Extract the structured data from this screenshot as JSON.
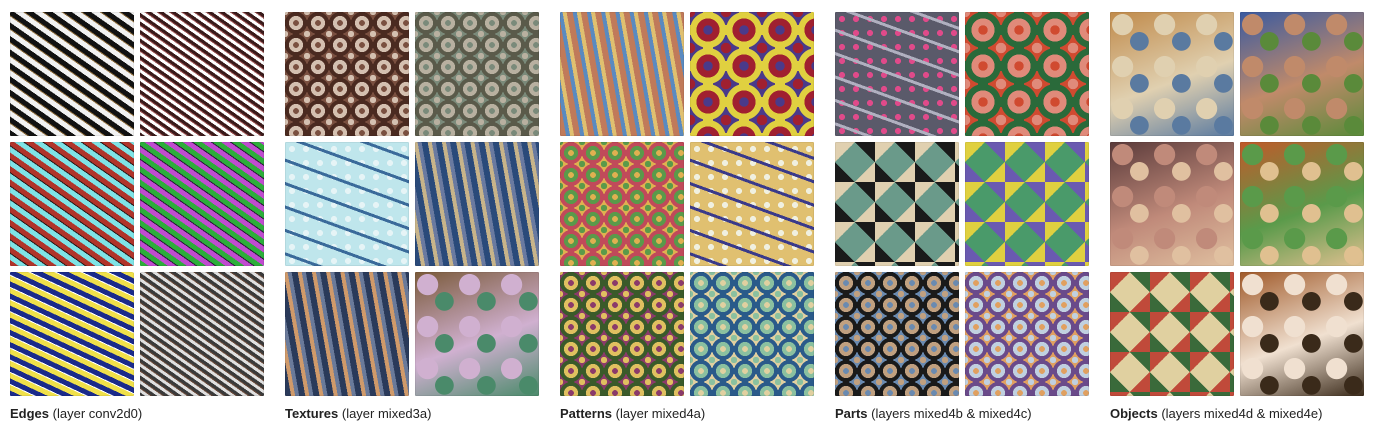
{
  "groups": [
    {
      "name": "Edges",
      "layer": "(layer conv2d0)",
      "tiles": [
        {
          "style": "edges-bw-diagonal",
          "colors": [
            "#111111",
            "#f2f2f2",
            "#8a6a3a"
          ]
        },
        {
          "style": "edges-bw-fine",
          "colors": [
            "#3a1a1a",
            "#ffffff",
            "#9a5050"
          ]
        },
        {
          "style": "edges-red-cyan",
          "colors": [
            "#b0342a",
            "#7fe3e6",
            "#2a1a1a"
          ]
        },
        {
          "style": "edges-green-magenta",
          "colors": [
            "#2cae3a",
            "#c04bd0",
            "#2a1a3a"
          ]
        },
        {
          "style": "edges-yellow-blue",
          "colors": [
            "#1a2a8a",
            "#f0e04a",
            "#ffffff"
          ]
        },
        {
          "style": "edges-grey-fine",
          "colors": [
            "#3a3a3a",
            "#e0e0e0",
            "#6a4a3a"
          ]
        }
      ]
    },
    {
      "name": "Textures",
      "layer": "(layer mixed3a)",
      "tiles": [
        {
          "style": "cells-brown",
          "colors": [
            "#4a2a20",
            "#d4c0b0",
            "#7a5040"
          ]
        },
        {
          "style": "scales-grey",
          "colors": [
            "#5a5a4a",
            "#b8b0a0",
            "#7a8a7a"
          ]
        },
        {
          "style": "dots-lightblue",
          "colors": [
            "#bfe6ec",
            "#3a6a9a",
            "#e6f4f6"
          ]
        },
        {
          "style": "waves-blue",
          "colors": [
            "#2a4a7a",
            "#c8b48a",
            "#6a7aa0"
          ]
        },
        {
          "style": "weave-tan",
          "colors": [
            "#2a3a5a",
            "#d09a6a",
            "#6a7a9a"
          ]
        },
        {
          "style": "blobs-pastel",
          "colors": [
            "#7a5a3a",
            "#d0b0d0",
            "#4a8a6a"
          ]
        }
      ]
    },
    {
      "name": "Patterns",
      "layer": "(layer mixed4a)",
      "tiles": [
        {
          "style": "interlace-rainbow",
          "colors": [
            "#c07a5a",
            "#5a8ac0",
            "#e0c070"
          ]
        },
        {
          "style": "fluff-flowers",
          "colors": [
            "#e0d040",
            "#a02030",
            "#4a3a8a"
          ]
        },
        {
          "style": "bubbles-multicolor",
          "colors": [
            "#c04a5a",
            "#5a9a4a",
            "#e0b050"
          ]
        },
        {
          "style": "text-noise",
          "colors": [
            "#e0c070",
            "#3a3a8a",
            "#f0f0e0"
          ]
        },
        {
          "style": "eyes-circles",
          "colors": [
            "#3a5a2a",
            "#e0c060",
            "#8a3a6a"
          ]
        },
        {
          "style": "hex-blue",
          "colors": [
            "#2a5a8a",
            "#8ac0a0",
            "#e0d0a0"
          ]
        }
      ]
    },
    {
      "name": "Parts",
      "layer": "(layers mixed4b & mixed4c)",
      "tiles": [
        {
          "style": "gadgets-grey",
          "colors": [
            "#5a5a6a",
            "#b0b0c0",
            "#e04a8a"
          ]
        },
        {
          "style": "flowers-pink",
          "colors": [
            "#2a6a3a",
            "#e08a7a",
            "#d04a30"
          ]
        },
        {
          "style": "chains-black",
          "colors": [
            "#1a1a1a",
            "#e0d0b0",
            "#6a9a8a"
          ]
        },
        {
          "style": "patchwork",
          "colors": [
            "#6a5ab0",
            "#e0d040",
            "#4a9a6a"
          ]
        },
        {
          "style": "dog-noses",
          "colors": [
            "#1a1a1a",
            "#c0a080",
            "#6a8ab0"
          ]
        },
        {
          "style": "bubbles-iridescent",
          "colors": [
            "#6a4a8a",
            "#c0d0e0",
            "#e0a060"
          ]
        }
      ]
    },
    {
      "name": "Objects",
      "layer": "(layers mixed4d & mixed4e)",
      "tiles": [
        {
          "style": "buildings",
          "colors": [
            "#c08a4a",
            "#e0d0b0",
            "#5a7aa0"
          ]
        },
        {
          "style": "legs-shorts",
          "colors": [
            "#3a5aa0",
            "#c08a6a",
            "#5a8a3a"
          ]
        },
        {
          "style": "faces-masks",
          "colors": [
            "#5a3a3a",
            "#c08a7a",
            "#e0c0a0"
          ]
        },
        {
          "style": "food-bowls",
          "colors": [
            "#c05a2a",
            "#5a9a4a",
            "#e0c090"
          ]
        },
        {
          "style": "spiders-leaves",
          "colors": [
            "#3a6a3a",
            "#c04a3a",
            "#e0d0a0"
          ]
        },
        {
          "style": "dogs",
          "colors": [
            "#a05a2a",
            "#f0e0d0",
            "#3a2a1a"
          ]
        }
      ]
    }
  ]
}
